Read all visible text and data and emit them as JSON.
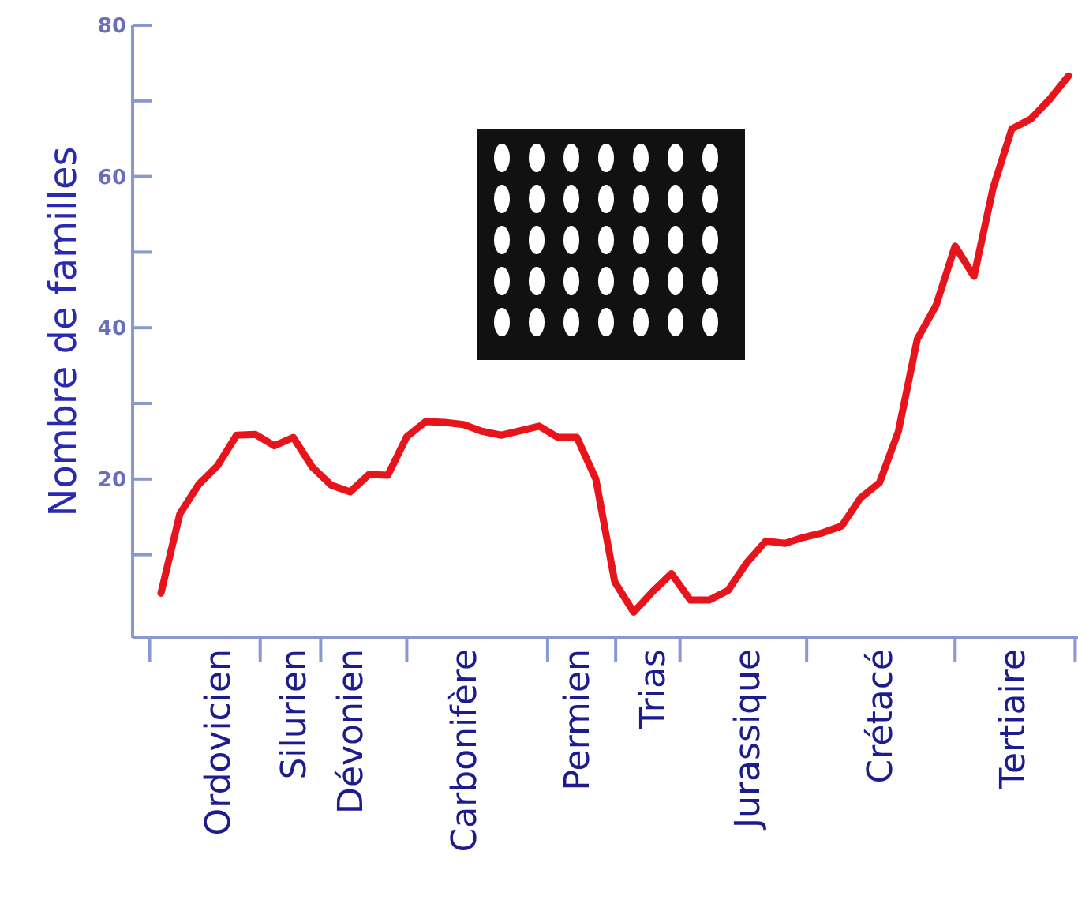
{
  "chart_data": {
    "type": "line",
    "ylabel": "Nombre de familles",
    "ylim": [
      -1,
      80
    ],
    "yticks": [
      {
        "value": 10,
        "label": null
      },
      20,
      {
        "value": 30,
        "label": null
      },
      40,
      {
        "value": 50,
        "label": null
      },
      60,
      {
        "value": 70,
        "label": null
      },
      80
    ],
    "categories": [
      null,
      null,
      null,
      null,
      "Ordovicien",
      null,
      null,
      null,
      "Silurien",
      null,
      null,
      "Dévonien",
      null,
      null,
      null,
      null,
      null,
      "Carbonifère",
      null,
      null,
      null,
      null,
      null,
      "Permien",
      null,
      null,
      null,
      "Trias",
      null,
      null,
      null,
      null,
      "Jurassique",
      null,
      null,
      null,
      null,
      null,
      null,
      "Crétacé",
      null,
      null,
      null,
      null,
      null,
      null,
      "Tertiaire",
      null,
      null,
      null
    ],
    "grid": false,
    "marker": "none",
    "line_style": "solid",
    "series": [
      {
        "color": "#e8141c",
        "values": [
          null,
          4.9,
          15.4,
          19.3,
          21.8,
          25.8,
          25.9,
          24.4,
          25.5,
          21.6,
          19.2,
          18.3,
          20.6,
          20.5,
          25.6,
          27.6,
          27.5,
          27.2,
          26.3,
          25.8,
          26.4,
          27.0,
          25.5,
          25.5,
          20.0,
          6.4,
          2.4,
          5.1,
          7.5,
          4.0,
          4.0,
          5.3,
          9.0,
          11.8,
          11.5,
          12.3,
          12.9,
          13.8,
          17.5,
          19.5,
          26.3,
          38.5,
          43.0,
          50.8,
          46.8,
          58.4,
          66.3,
          67.6,
          70.2,
          73.3
        ]
      }
    ]
  }
}
